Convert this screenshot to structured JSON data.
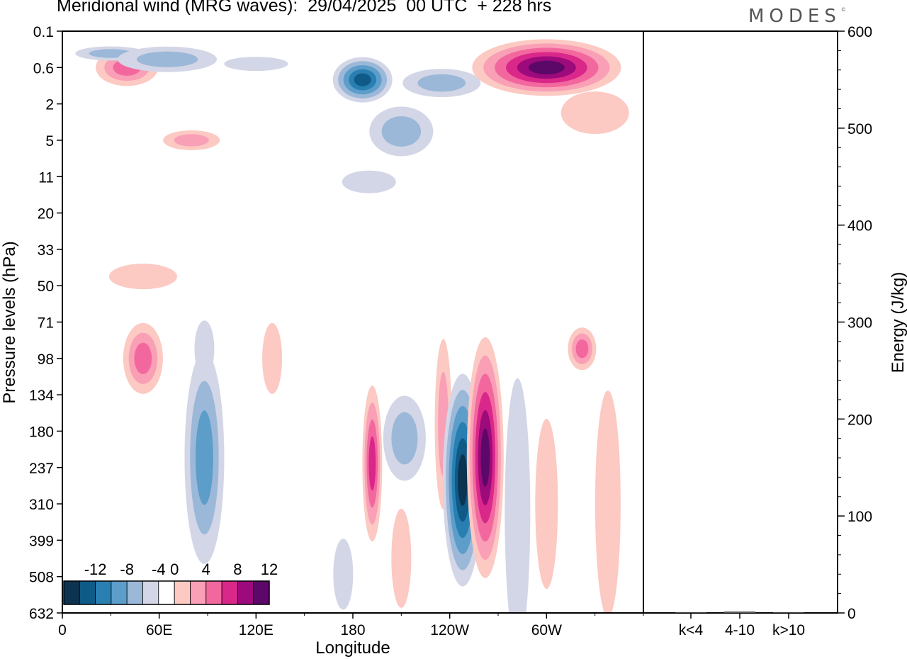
{
  "title": "Meridional wind (MRG waves):  29/04/2025  00 UTC  + 228 hrs",
  "brand": "MODES",
  "brand_mark": "©",
  "chart_data": [
    {
      "type": "heatmap",
      "title": "Meridional wind (MRG waves):  29/04/2025  00 UTC  + 228 hrs",
      "xlabel": "Longitude",
      "ylabel": "Pressure levels (hPa)",
      "x_ticks": [
        "0",
        "60E",
        "120E",
        "180",
        "120W",
        "60W"
      ],
      "y_ticks": [
        "0.1",
        "0.6",
        "2",
        "5",
        "11",
        "20",
        "33",
        "50",
        "71",
        "98",
        "134",
        "180",
        "237",
        "310",
        "399",
        "508",
        "632"
      ],
      "colorbar": {
        "levels": [
          -14,
          -12,
          -10,
          -8,
          -6,
          -4,
          -2,
          2,
          4,
          6,
          8,
          10,
          12,
          14
        ],
        "labels": [
          "-12",
          "-8",
          "-4",
          "0",
          "4",
          "8",
          "12"
        ],
        "label_values": [
          -12,
          -8,
          -4,
          0,
          4,
          8,
          12
        ],
        "colors": [
          "#0c3350",
          "#0f5a87",
          "#2a7fb2",
          "#5c9dca",
          "#9cb8d8",
          "#d3d6e6",
          "#ffffff",
          "#fcc9c3",
          "#f99fb6",
          "#f2689e",
          "#d9278a",
          "#9c0a7b",
          "#5c0868"
        ]
      },
      "features": [
        {
          "lon": 40,
          "level": "0.6",
          "value": 6
        },
        {
          "lon": 30,
          "level": "0.3",
          "value": -4
        },
        {
          "lon": 65,
          "level": "0.4",
          "value": -5
        },
        {
          "lon": 120,
          "level": "0.5",
          "value": -3
        },
        {
          "lon": 186,
          "level": "0.9",
          "value": -11
        },
        {
          "lon": 235,
          "level": "1.0",
          "value": -5
        },
        {
          "lon": 300,
          "level": "0.6",
          "value": 13
        },
        {
          "lon": 330,
          "level": "2.5",
          "value": 3
        },
        {
          "lon": 210,
          "level": "4",
          "value": -4
        },
        {
          "lon": 190,
          "level": "12",
          "value": -3
        },
        {
          "lon": 80,
          "level": "5",
          "value": 4
        },
        {
          "lon": 50,
          "level": "45",
          "value": 3
        },
        {
          "lon": 50,
          "level": "98",
          "value": 7
        },
        {
          "lon": 88,
          "level": "90",
          "value": -3
        },
        {
          "lon": 88,
          "level": "220",
          "value": -7
        },
        {
          "lon": 130,
          "level": "98",
          "value": 3
        },
        {
          "lon": 192,
          "level": "230",
          "value": 8
        },
        {
          "lon": 212,
          "level": "190",
          "value": -5
        },
        {
          "lon": 236,
          "level": "170",
          "value": 5
        },
        {
          "lon": 248,
          "level": "260",
          "value": -13
        },
        {
          "lon": 262,
          "level": "220",
          "value": 12
        },
        {
          "lon": 282,
          "level": "330",
          "value": -3
        },
        {
          "lon": 300,
          "level": "310",
          "value": 3
        },
        {
          "lon": 322,
          "level": "90",
          "value": 6
        },
        {
          "lon": 338,
          "level": "310",
          "value": 3
        },
        {
          "lon": 210,
          "level": "450",
          "value": 3
        },
        {
          "lon": 174,
          "level": "500",
          "value": -3
        }
      ]
    },
    {
      "type": "bar",
      "ylabel": "Energy (J/kg)",
      "categories": [
        "k<4",
        "4-10",
        "k>10"
      ],
      "values": [
        0.5,
        1.5,
        0.5
      ],
      "ylim": [
        0,
        600
      ],
      "y_ticks": [
        "0",
        "100",
        "200",
        "300",
        "400",
        "500",
        "600"
      ]
    }
  ]
}
